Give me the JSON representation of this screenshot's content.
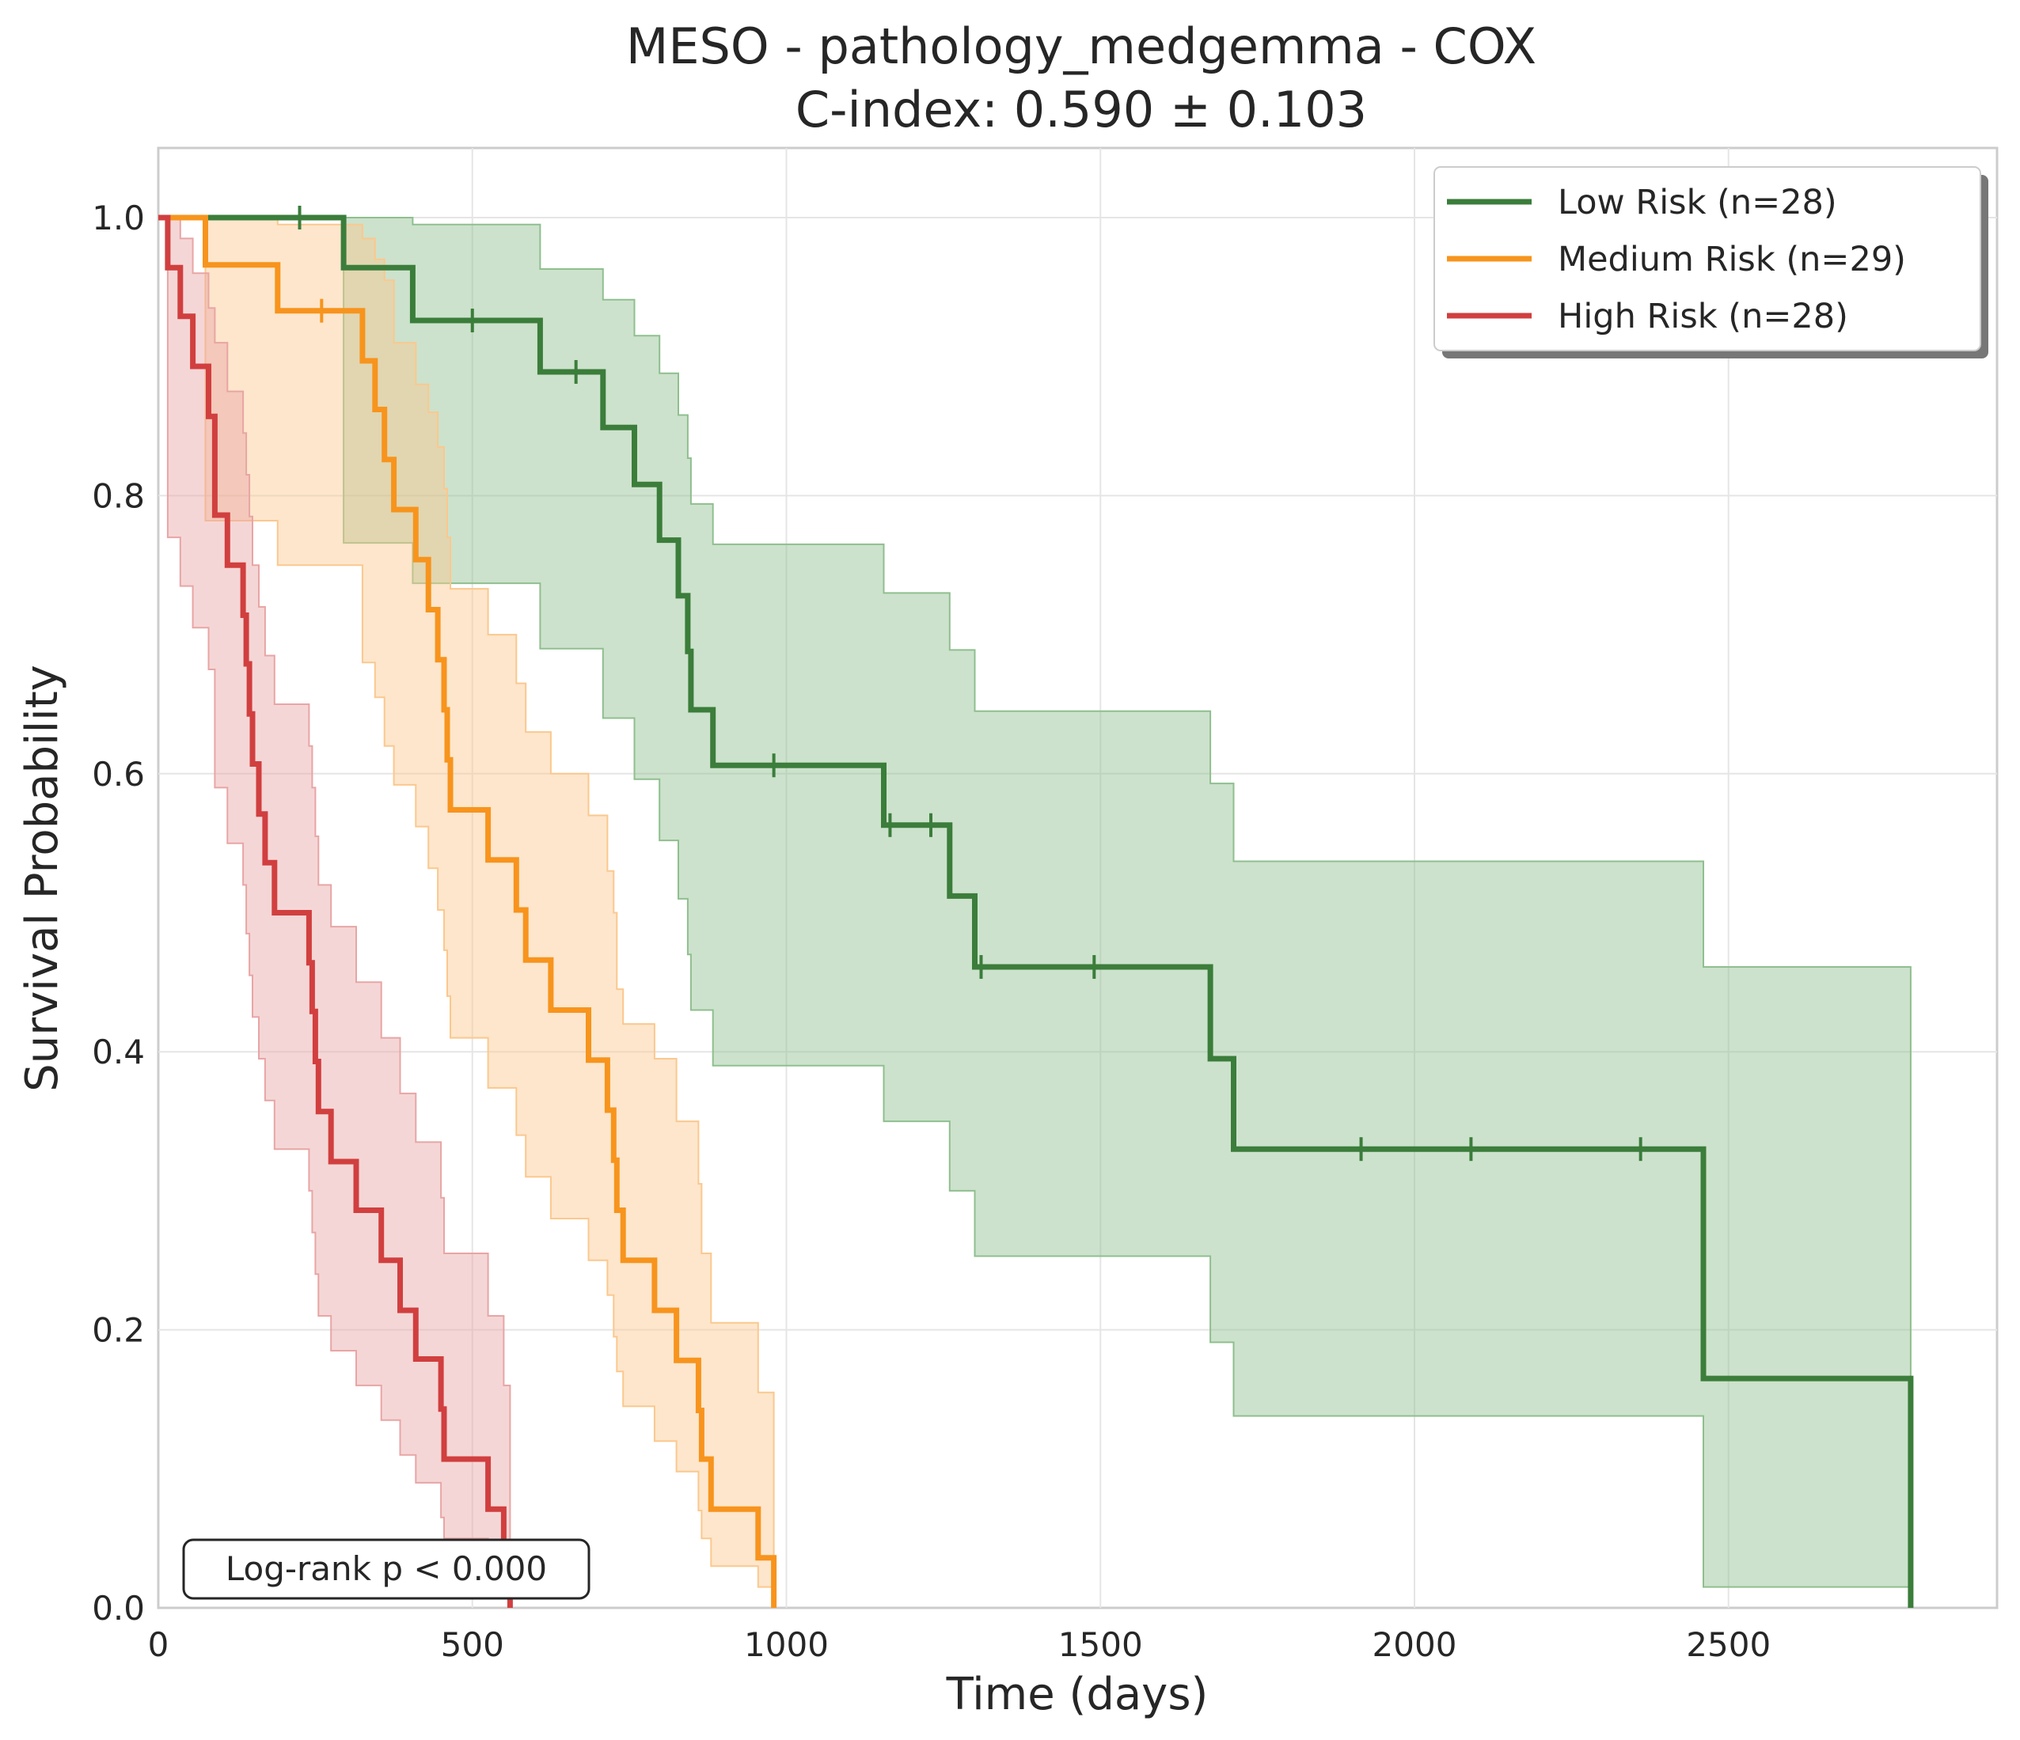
{
  "chart_data": {
    "type": "line",
    "subtype": "kaplan-meier",
    "title": "MESO - pathology_medgemma - COX",
    "subtitle": "C-index: 0.590 ± 0.103",
    "xlabel": "Time (days)",
    "ylabel": "Survival Probability",
    "xlim": [
      0,
      2900
    ],
    "ylim": [
      0,
      1.05
    ],
    "xticks": [
      0,
      500,
      1000,
      1500,
      2000,
      2500
    ],
    "yticks": [
      0.0,
      0.2,
      0.4,
      0.6,
      0.8,
      1.0
    ],
    "xtick_labels": [
      "0",
      "500",
      "1000",
      "1500",
      "2000",
      "2500"
    ],
    "ytick_labels": [
      "0.0",
      "0.2",
      "0.4",
      "0.6",
      "0.8",
      "1.0"
    ],
    "grid": true,
    "legend_position": "top-right",
    "annotation": "Log-rank p < 0.000",
    "series": [
      {
        "name": "Low Risk (n=28)",
        "color": "#3b7d3b",
        "band_color": "#8fbf8f",
        "steps": [
          [
            0,
            1.0
          ],
          [
            295,
            0.964
          ],
          [
            405,
            0.926
          ],
          [
            608,
            0.889
          ],
          [
            708,
            0.849
          ],
          [
            758,
            0.808
          ],
          [
            798,
            0.768
          ],
          [
            828,
            0.728
          ],
          [
            843,
            0.688
          ],
          [
            848,
            0.646
          ],
          [
            883,
            0.606
          ],
          [
            1155,
            0.563
          ],
          [
            1260,
            0.512
          ],
          [
            1300,
            0.461
          ],
          [
            1675,
            0.395
          ],
          [
            1712,
            0.33
          ],
          [
            2460,
            0.165
          ],
          [
            2790,
            0.0
          ]
        ],
        "lower": [
          [
            0,
            1.0
          ],
          [
            295,
            0.766
          ],
          [
            405,
            0.737
          ],
          [
            608,
            0.69
          ],
          [
            708,
            0.64
          ],
          [
            758,
            0.596
          ],
          [
            798,
            0.552
          ],
          [
            828,
            0.51
          ],
          [
            843,
            0.47
          ],
          [
            848,
            0.43
          ],
          [
            883,
            0.39
          ],
          [
            1155,
            0.35
          ],
          [
            1260,
            0.3
          ],
          [
            1300,
            0.253
          ],
          [
            1675,
            0.191
          ],
          [
            1712,
            0.138
          ],
          [
            2460,
            0.015
          ],
          [
            2790,
            0.015
          ]
        ],
        "upper": [
          [
            0,
            1.0
          ],
          [
            295,
            1.0
          ],
          [
            405,
            0.995
          ],
          [
            608,
            0.963
          ],
          [
            708,
            0.941
          ],
          [
            758,
            0.915
          ],
          [
            798,
            0.888
          ],
          [
            828,
            0.858
          ],
          [
            843,
            0.827
          ],
          [
            848,
            0.794
          ],
          [
            883,
            0.765
          ],
          [
            1155,
            0.73
          ],
          [
            1260,
            0.689
          ],
          [
            1300,
            0.645
          ],
          [
            1675,
            0.593
          ],
          [
            1712,
            0.537
          ],
          [
            2460,
            0.461
          ],
          [
            2790,
            0.461
          ]
        ],
        "end_x": 2790,
        "censors": [
          [
            225,
            1.0
          ],
          [
            500,
            0.926
          ],
          [
            665,
            0.889
          ],
          [
            980,
            0.606
          ],
          [
            1165,
            0.563
          ],
          [
            1230,
            0.563
          ],
          [
            1310,
            0.461
          ],
          [
            1490,
            0.461
          ],
          [
            1915,
            0.33
          ],
          [
            2090,
            0.33
          ],
          [
            2360,
            0.33
          ]
        ]
      },
      {
        "name": "Medium Risk (n=29)",
        "color": "#f7941d",
        "band_color": "#fbc88e",
        "steps": [
          [
            0,
            1.0
          ],
          [
            75,
            0.966
          ],
          [
            190,
            0.933
          ],
          [
            325,
            0.897
          ],
          [
            345,
            0.862
          ],
          [
            360,
            0.826
          ],
          [
            375,
            0.79
          ],
          [
            410,
            0.754
          ],
          [
            430,
            0.718
          ],
          [
            445,
            0.682
          ],
          [
            455,
            0.646
          ],
          [
            460,
            0.61
          ],
          [
            465,
            0.574
          ],
          [
            525,
            0.538
          ],
          [
            570,
            0.502
          ],
          [
            585,
            0.466
          ],
          [
            625,
            0.43
          ],
          [
            685,
            0.394
          ],
          [
            715,
            0.358
          ],
          [
            725,
            0.322
          ],
          [
            730,
            0.286
          ],
          [
            740,
            0.25
          ],
          [
            790,
            0.214
          ],
          [
            825,
            0.178
          ],
          [
            860,
            0.142
          ],
          [
            865,
            0.107
          ],
          [
            880,
            0.071
          ],
          [
            955,
            0.036
          ],
          [
            980,
            0.0
          ]
        ],
        "lower": [
          [
            0,
            1.0
          ],
          [
            75,
            0.782
          ],
          [
            190,
            0.75
          ],
          [
            325,
            0.68
          ],
          [
            345,
            0.655
          ],
          [
            360,
            0.62
          ],
          [
            375,
            0.592
          ],
          [
            410,
            0.562
          ],
          [
            430,
            0.532
          ],
          [
            445,
            0.502
          ],
          [
            455,
            0.473
          ],
          [
            460,
            0.44
          ],
          [
            465,
            0.41
          ],
          [
            525,
            0.374
          ],
          [
            570,
            0.34
          ],
          [
            585,
            0.31
          ],
          [
            625,
            0.28
          ],
          [
            685,
            0.25
          ],
          [
            715,
            0.225
          ],
          [
            725,
            0.195
          ],
          [
            730,
            0.17
          ],
          [
            740,
            0.145
          ],
          [
            790,
            0.12
          ],
          [
            825,
            0.098
          ],
          [
            860,
            0.07
          ],
          [
            865,
            0.05
          ],
          [
            880,
            0.03
          ],
          [
            955,
            0.015
          ],
          [
            980,
            0.0
          ]
        ],
        "upper": [
          [
            0,
            1.0
          ],
          [
            75,
            1.0
          ],
          [
            190,
            0.995
          ],
          [
            325,
            0.985
          ],
          [
            345,
            0.97
          ],
          [
            360,
            0.955
          ],
          [
            375,
            0.91
          ],
          [
            410,
            0.88
          ],
          [
            430,
            0.86
          ],
          [
            445,
            0.835
          ],
          [
            455,
            0.805
          ],
          [
            460,
            0.77
          ],
          [
            465,
            0.733
          ],
          [
            525,
            0.7
          ],
          [
            570,
            0.665
          ],
          [
            585,
            0.63
          ],
          [
            625,
            0.6
          ],
          [
            685,
            0.57
          ],
          [
            715,
            0.53
          ],
          [
            725,
            0.5
          ],
          [
            730,
            0.445
          ],
          [
            740,
            0.42
          ],
          [
            790,
            0.395
          ],
          [
            825,
            0.35
          ],
          [
            860,
            0.305
          ],
          [
            865,
            0.255
          ],
          [
            880,
            0.205
          ],
          [
            955,
            0.155
          ],
          [
            980,
            0.0
          ]
        ],
        "end_x": 980,
        "censors": [
          [
            260,
            0.933
          ]
        ]
      },
      {
        "name": "High Risk (n=28)",
        "color": "#d13f3f",
        "band_color": "#e8a5a5",
        "steps": [
          [
            0,
            1.0
          ],
          [
            15,
            0.964
          ],
          [
            35,
            0.929
          ],
          [
            55,
            0.893
          ],
          [
            80,
            0.857
          ],
          [
            90,
            0.786
          ],
          [
            110,
            0.75
          ],
          [
            135,
            0.714
          ],
          [
            140,
            0.679
          ],
          [
            145,
            0.643
          ],
          [
            150,
            0.607
          ],
          [
            160,
            0.571
          ],
          [
            170,
            0.536
          ],
          [
            185,
            0.5
          ],
          [
            240,
            0.464
          ],
          [
            245,
            0.429
          ],
          [
            250,
            0.393
          ],
          [
            255,
            0.357
          ],
          [
            275,
            0.321
          ],
          [
            315,
            0.286
          ],
          [
            355,
            0.25
          ],
          [
            385,
            0.214
          ],
          [
            410,
            0.179
          ],
          [
            450,
            0.143
          ],
          [
            455,
            0.107
          ],
          [
            525,
            0.071
          ],
          [
            550,
            0.036
          ],
          [
            560,
            0.0
          ]
        ],
        "lower": [
          [
            0,
            1.0
          ],
          [
            15,
            0.77
          ],
          [
            35,
            0.735
          ],
          [
            55,
            0.705
          ],
          [
            80,
            0.675
          ],
          [
            90,
            0.59
          ],
          [
            110,
            0.55
          ],
          [
            135,
            0.52
          ],
          [
            140,
            0.485
          ],
          [
            145,
            0.455
          ],
          [
            150,
            0.425
          ],
          [
            160,
            0.395
          ],
          [
            170,
            0.365
          ],
          [
            185,
            0.33
          ],
          [
            240,
            0.3
          ],
          [
            245,
            0.27
          ],
          [
            250,
            0.24
          ],
          [
            255,
            0.21
          ],
          [
            275,
            0.185
          ],
          [
            315,
            0.16
          ],
          [
            355,
            0.135
          ],
          [
            385,
            0.11
          ],
          [
            410,
            0.09
          ],
          [
            450,
            0.065
          ],
          [
            455,
            0.05
          ],
          [
            525,
            0.03
          ],
          [
            550,
            0.015
          ],
          [
            560,
            0.0
          ]
        ],
        "upper": [
          [
            0,
            1.0
          ],
          [
            15,
            1.0
          ],
          [
            35,
            0.985
          ],
          [
            55,
            0.96
          ],
          [
            80,
            0.935
          ],
          [
            90,
            0.91
          ],
          [
            110,
            0.875
          ],
          [
            135,
            0.845
          ],
          [
            140,
            0.815
          ],
          [
            145,
            0.785
          ],
          [
            150,
            0.75
          ],
          [
            160,
            0.72
          ],
          [
            170,
            0.685
          ],
          [
            185,
            0.65
          ],
          [
            240,
            0.62
          ],
          [
            245,
            0.59
          ],
          [
            250,
            0.555
          ],
          [
            255,
            0.52
          ],
          [
            275,
            0.49
          ],
          [
            315,
            0.45
          ],
          [
            355,
            0.41
          ],
          [
            385,
            0.37
          ],
          [
            410,
            0.335
          ],
          [
            450,
            0.295
          ],
          [
            455,
            0.255
          ],
          [
            525,
            0.21
          ],
          [
            550,
            0.16
          ],
          [
            560,
            0.0
          ]
        ],
        "end_x": 560,
        "censors": []
      }
    ]
  }
}
